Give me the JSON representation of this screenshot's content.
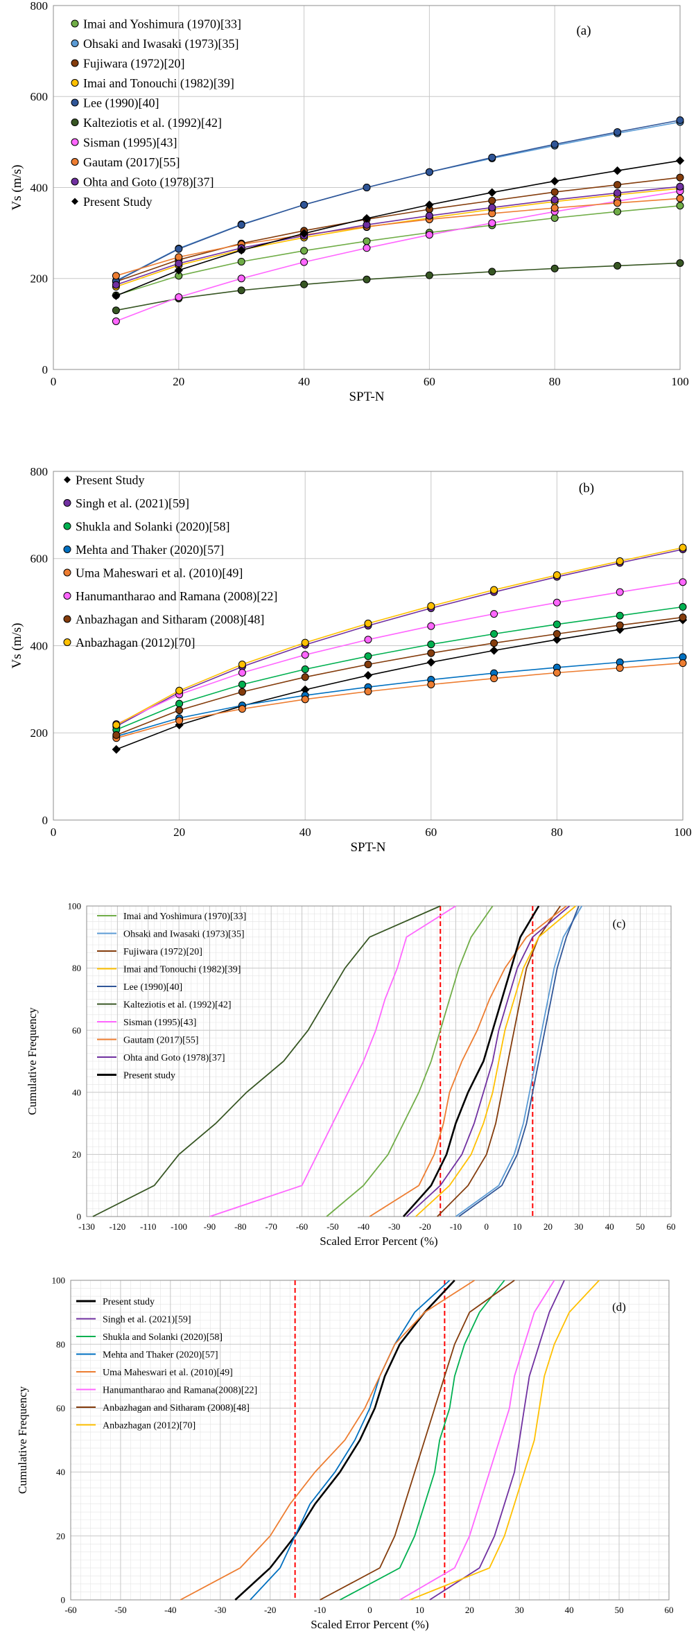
{
  "chart_data": [
    {
      "type": "line",
      "panel_label": "(a)",
      "xlabel": "SPT-N",
      "ylabel": "Vs (m/s)",
      "xlim": [
        0,
        100
      ],
      "ylim": [
        0,
        800
      ],
      "xticks": [
        0,
        20,
        40,
        60,
        80,
        100
      ],
      "yticks": [
        0,
        200,
        400,
        600,
        800
      ],
      "grid": true,
      "legend_position": "top-left",
      "markers": true,
      "x": [
        10,
        20,
        30,
        40,
        50,
        60,
        70,
        80,
        90,
        100
      ],
      "series": [
        {
          "name": "Imai and Yoshimura (1970)[33]",
          "color": "#70ad47",
          "marker": "circle",
          "values": [
            163,
            206,
            237,
            261,
            282,
            301,
            317,
            333,
            347,
            360
          ]
        },
        {
          "name": "Ohsaki and Iwasaki (1973)[35]",
          "color": "#5b9bd5",
          "marker": "circle",
          "values": [
            195,
            266,
            319,
            362,
            400,
            434,
            464,
            492,
            519,
            544
          ]
        },
        {
          "name": "Fujiwara (1972)[20]",
          "color": "#843c0c",
          "marker": "circle",
          "values": [
            193,
            241,
            277,
            305,
            330,
            352,
            371,
            390,
            406,
            422
          ]
        },
        {
          "name": "Imai and Tonouchi (1982)[39]",
          "color": "#ffc000",
          "marker": "circle",
          "values": [
            182,
            229,
            263,
            290,
            313,
            333,
            352,
            369,
            384,
            398
          ]
        },
        {
          "name": "Lee (1990)[40]",
          "color": "#2f5597",
          "marker": "circle",
          "values": [
            194,
            265,
            318,
            362,
            400,
            434,
            466,
            495,
            522,
            548
          ]
        },
        {
          "name": "Kalteziotis et al. (1992)[42]",
          "color": "#375623",
          "marker": "circle",
          "values": [
            130,
            156,
            174,
            187,
            198,
            207,
            215,
            222,
            228,
            234
          ]
        },
        {
          "name": "Sisman (1995)[43]",
          "color": "#ff66ff",
          "marker": "circle",
          "values": [
            106,
            159,
            200,
            236,
            267,
            296,
            322,
            347,
            370,
            392
          ]
        },
        {
          "name": "Gautam (2017)[55]",
          "color": "#ed7d31",
          "marker": "circle",
          "values": [
            206,
            247,
            275,
            296,
            314,
            330,
            343,
            355,
            366,
            376
          ]
        },
        {
          "name": "Ohta and Goto (1978)[37]",
          "color": "#7030a0",
          "marker": "circle",
          "values": [
            186,
            233,
            267,
            294,
            318,
            338,
            356,
            373,
            388,
            402
          ]
        },
        {
          "name": "Present Study",
          "color": "#000000",
          "marker": "diamond",
          "values": [
            162,
            218,
            262,
            299,
            332,
            362,
            389,
            414,
            437,
            459
          ]
        }
      ]
    },
    {
      "type": "line",
      "panel_label": "(b)",
      "xlabel": "SPT-N",
      "ylabel": "Vs (m/s)",
      "xlim": [
        0,
        100
      ],
      "ylim": [
        0,
        800
      ],
      "xticks": [
        0,
        20,
        40,
        60,
        80,
        100
      ],
      "yticks": [
        0,
        200,
        400,
        600,
        800
      ],
      "grid": true,
      "legend_position": "top-left",
      "markers": true,
      "x": [
        10,
        20,
        30,
        40,
        50,
        60,
        70,
        80,
        90,
        100
      ],
      "series": [
        {
          "name": "Present Study",
          "color": "#000000",
          "marker": "diamond",
          "values": [
            162,
            218,
            262,
            299,
            332,
            362,
            389,
            414,
            437,
            459
          ]
        },
        {
          "name": "Singh et al. (2021)[59]",
          "color": "#7030a0",
          "marker": "circle",
          "values": [
            215,
            293,
            352,
            402,
            446,
            486,
            523,
            558,
            590,
            621
          ]
        },
        {
          "name": "Shukla and Solanki (2020)[58]",
          "color": "#00b050",
          "marker": "circle",
          "values": [
            207,
            267,
            311,
            346,
            376,
            403,
            427,
            449,
            469,
            489
          ]
        },
        {
          "name": "Mehta and Thaker (2020)[57]",
          "color": "#0070c0",
          "marker": "circle",
          "values": [
            192,
            234,
            263,
            286,
            305,
            322,
            337,
            350,
            362,
            374
          ]
        },
        {
          "name": "Uma Maheswari et al. (2010)[49]",
          "color": "#ed7d31",
          "marker": "circle",
          "values": [
            188,
            228,
            255,
            277,
            295,
            311,
            325,
            338,
            349,
            360
          ]
        },
        {
          "name": "Hanumantharao and Ramana (2008)[22]",
          "color": "#ff66ff",
          "marker": "circle",
          "values": [
            220,
            288,
            338,
            379,
            414,
            445,
            473,
            499,
            523,
            546
          ]
        },
        {
          "name": "Anbazhagan and Sitharam (2008)[48]",
          "color": "#843c0c",
          "marker": "circle",
          "values": [
            195,
            252,
            294,
            328,
            357,
            383,
            406,
            427,
            447,
            465
          ]
        },
        {
          "name": "Anbazhagan (2012)[70]",
          "color": "#ffc000",
          "marker": "circle",
          "values": [
            218,
            297,
            357,
            407,
            451,
            491,
            528,
            562,
            594,
            625
          ]
        }
      ]
    },
    {
      "type": "line",
      "panel_label": "(c)",
      "xlabel": "Scaled Error Percent (%)",
      "ylabel": "Cumulative Frequency",
      "xlim": [
        -130,
        60
      ],
      "ylim": [
        0,
        100
      ],
      "xticks": [
        -130,
        -120,
        -110,
        -100,
        -90,
        -80,
        -70,
        -60,
        -50,
        -40,
        -30,
        -20,
        -10,
        0,
        10,
        20,
        30,
        40,
        50,
        60
      ],
      "yticks": [
        0,
        20,
        40,
        60,
        80,
        100
      ],
      "grid": true,
      "legend_position": "top-left",
      "reference_lines_x": [
        -15,
        15
      ],
      "reference_line_color": "#ff0000",
      "y": [
        0,
        10,
        20,
        30,
        40,
        50,
        60,
        70,
        80,
        90,
        100
      ],
      "series": [
        {
          "name": "Imai and Yoshimura (1970)[33]",
          "color": "#70ad47",
          "x": [
            -52,
            -40,
            -32,
            -27,
            -22,
            -18,
            -15,
            -12,
            -9,
            -5,
            2
          ]
        },
        {
          "name": "Ohsaki and Iwasaki (1973)[35]",
          "color": "#5b9bd5",
          "x": [
            -10,
            4,
            9,
            12,
            14,
            16,
            18,
            20,
            22,
            25,
            31
          ]
        },
        {
          "name": "Fujiwara (1972)[20]",
          "color": "#843c0c",
          "x": [
            -16,
            -6,
            0,
            3,
            5,
            7,
            9,
            11,
            13,
            17,
            24
          ]
        },
        {
          "name": "Imai and Tonouchi (1982)[39]",
          "color": "#ffc000",
          "x": [
            -23,
            -12,
            -5,
            -1,
            2,
            4,
            6,
            9,
            12,
            17,
            29
          ]
        },
        {
          "name": "Lee (1990)[40]",
          "color": "#2f5597",
          "x": [
            -9,
            5,
            10,
            13,
            15,
            17,
            19,
            21,
            23,
            26,
            30
          ]
        },
        {
          "name": "Kalteziotis et al. (1992)[42]",
          "color": "#375623",
          "x": [
            -128,
            -108,
            -100,
            -88,
            -78,
            -66,
            -58,
            -52,
            -46,
            -38,
            -15
          ]
        },
        {
          "name": "Sisman (1995)[43]",
          "color": "#ff66ff",
          "x": [
            -90,
            -60,
            -55,
            -50,
            -45,
            -40,
            -36,
            -33,
            -29,
            -26,
            -10
          ]
        },
        {
          "name": "Gautam (2017)[55]",
          "color": "#ed7d31",
          "x": [
            -38,
            -22,
            -17,
            -14,
            -12,
            -8,
            -3,
            1,
            6,
            13,
            26
          ]
        },
        {
          "name": "Ohta and Goto (1978)[37]",
          "color": "#7030a0",
          "x": [
            -26,
            -15,
            -8,
            -4,
            -1,
            2,
            4,
            7,
            10,
            15,
            27
          ]
        },
        {
          "name": "Present study",
          "color": "#000000",
          "x": [
            -27,
            -18,
            -13,
            -10,
            -6,
            -1,
            2,
            5,
            8,
            11,
            17
          ]
        }
      ]
    },
    {
      "type": "line",
      "panel_label": "(d)",
      "xlabel": "Scaled Error Percent (%)",
      "ylabel": "Cumulative Frequency",
      "xlim": [
        -60,
        60
      ],
      "ylim": [
        0,
        100
      ],
      "xticks": [
        -60,
        -50,
        -40,
        -30,
        -20,
        -10,
        0,
        10,
        20,
        30,
        40,
        50,
        60
      ],
      "yticks": [
        0,
        20,
        40,
        60,
        80,
        100
      ],
      "grid": true,
      "legend_position": "top-left",
      "reference_lines_x": [
        -15,
        15
      ],
      "reference_line_color": "#ff0000",
      "y": [
        0,
        10,
        20,
        30,
        40,
        50,
        60,
        70,
        80,
        90,
        100
      ],
      "series": [
        {
          "name": "Present study",
          "color": "#000000",
          "x": [
            -27,
            -20,
            -15,
            -11,
            -6,
            -2,
            1,
            3,
            6,
            11,
            17
          ]
        },
        {
          "name": "Singh et al. (2021)[59]",
          "color": "#7030a0",
          "x": [
            12,
            22,
            25,
            27,
            29,
            30,
            31,
            32,
            34,
            36,
            39
          ]
        },
        {
          "name": "Shukla and Solanki (2020)[58]",
          "color": "#00b050",
          "x": [
            -6,
            6,
            9,
            11,
            13,
            14,
            16,
            17,
            19,
            22,
            27
          ]
        },
        {
          "name": "Mehta and Thaker (2020)[57]",
          "color": "#0070c0",
          "x": [
            -24,
            -18,
            -15,
            -12,
            -7,
            -3,
            0,
            2,
            5,
            9,
            16
          ]
        },
        {
          "name": "Uma Maheswari et al. (2010)[49]",
          "color": "#ed7d31",
          "x": [
            -38,
            -26,
            -20,
            -16,
            -11,
            -5,
            -1,
            2,
            5,
            11,
            21
          ]
        },
        {
          "name": "Hanumantharao and Ramana(2008)[22]",
          "color": "#ff66ff",
          "x": [
            6,
            17,
            20,
            22,
            24,
            26,
            28,
            29,
            31,
            33,
            37
          ]
        },
        {
          "name": "Anbazhagan and Sitharam (2008)[48]",
          "color": "#843c0c",
          "x": [
            -10,
            2,
            5,
            7,
            9,
            11,
            13,
            15,
            17,
            20,
            29
          ]
        },
        {
          "name": "Anbazhagan (2012)[70]",
          "color": "#ffc000",
          "x": [
            8,
            24,
            27,
            29,
            31,
            33,
            34,
            35,
            37,
            40,
            46
          ]
        }
      ]
    }
  ]
}
